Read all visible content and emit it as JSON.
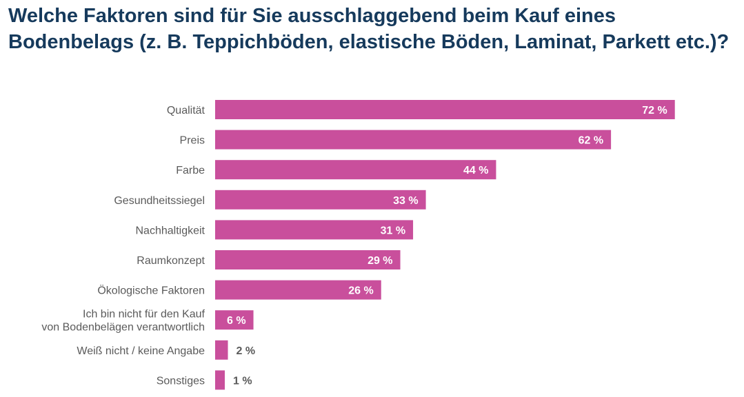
{
  "chart_data": {
    "type": "bar",
    "orientation": "horizontal",
    "title": "Welche Faktoren sind für Sie ausschlaggebend beim Kauf eines Bodenbelags (z. B. Teppichböden, elastische Böden, Laminat, Parkett etc.)?",
    "xlabel": "",
    "ylabel": "",
    "unit": "%",
    "categories": [
      [
        "Qualität"
      ],
      [
        "Preis"
      ],
      [
        "Farbe"
      ],
      [
        "Gesundheitssiegel"
      ],
      [
        "Nachhaltigkeit"
      ],
      [
        "Raumkonzept"
      ],
      [
        "Ökologische Faktoren"
      ],
      [
        "Ich bin nicht für den Kauf",
        "von Bodenbelägen verantwortlich"
      ],
      [
        "Weiß nicht / keine Angabe"
      ],
      [
        "Sonstiges"
      ]
    ],
    "values": [
      72,
      62,
      44,
      33,
      31,
      29,
      26,
      6,
      2,
      1
    ],
    "value_labels": [
      "72 %",
      "62 %",
      "44 %",
      "33 %",
      "31 %",
      "29 %",
      "26 %",
      "6 %",
      "2 %",
      "1 %"
    ],
    "xlim": [
      0,
      100
    ],
    "grid": false,
    "legend": "none",
    "bar_color": "#c94f9c",
    "title_color": "#163a5c"
  }
}
